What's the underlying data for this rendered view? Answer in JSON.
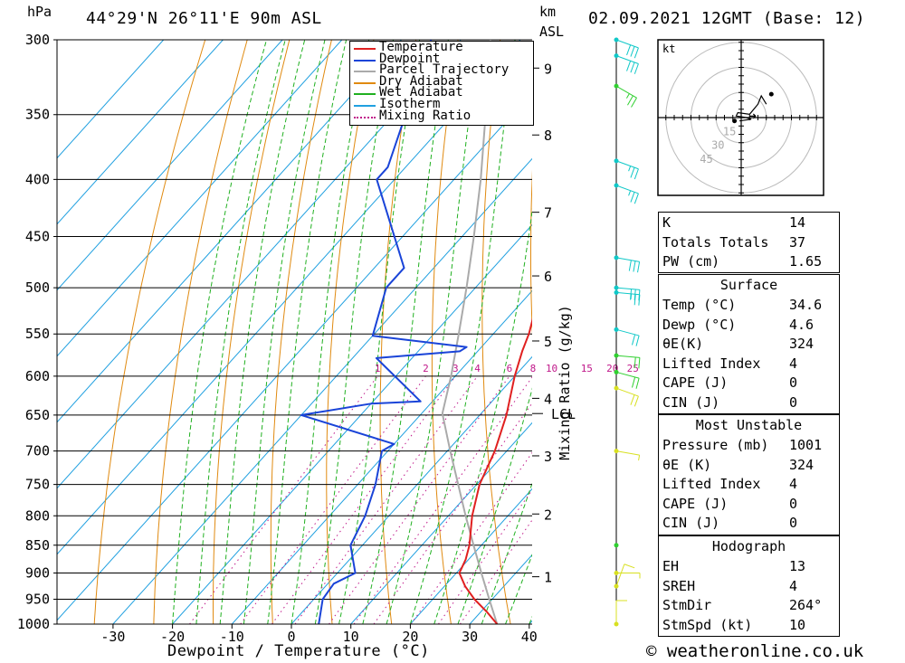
{
  "header": {
    "hpa_label": "hPa",
    "location": "44°29'N 26°11'E 90m ASL",
    "km_label": "km",
    "asl_label": "ASL",
    "datetime": "02.09.2021 12GMT (Base: 12)"
  },
  "footer": {
    "copyright": "© weatheronline.co.uk"
  },
  "colors": {
    "temperature": "#e02020",
    "dewpoint": "#1a44d8",
    "parcel": "#aaaaaa",
    "dry_adiabat": "#e08a10",
    "wet_adiabat": "#20b020",
    "isotherm": "#20a0e0",
    "mixing_ratio": "#c0188a",
    "wind_upper": "#10c8c8",
    "wind_mid": "#30d030",
    "wind_low": "#d8e020"
  },
  "chart_data": {
    "type": "skew-t",
    "title": "44°29'N 26°11'E 90m ASL",
    "xlabel": "Dewpoint / Temperature (°C)",
    "ylabel": "hPa",
    "y2label": "Mixing Ratio (g/kg)",
    "x_ticks": [
      -30,
      -20,
      -10,
      0,
      10,
      20,
      30,
      40
    ],
    "pressure_levels": [
      300,
      350,
      400,
      450,
      500,
      550,
      600,
      650,
      700,
      750,
      800,
      850,
      900,
      950,
      1000
    ],
    "km_ticks": [
      {
        "label": "1",
        "p": 907
      },
      {
        "label": "2",
        "p": 797
      },
      {
        "label": "3",
        "p": 707
      },
      {
        "label": "4",
        "p": 628
      },
      {
        "label": "5",
        "p": 558
      },
      {
        "label": "6",
        "p": 488
      },
      {
        "label": "7",
        "p": 428
      },
      {
        "label": "8",
        "p": 365
      },
      {
        "label": "9",
        "p": 318
      }
    ],
    "lcl": {
      "label": "LCL",
      "p": 648
    },
    "mixing_ratio_labels": [
      "1",
      "2",
      "3",
      "4",
      "6",
      "8",
      "10",
      "15",
      "20",
      "25"
    ],
    "legend": [
      {
        "label": "Temperature",
        "key": "temperature",
        "dotted": false
      },
      {
        "label": "Dewpoint",
        "key": "dewpoint",
        "dotted": false
      },
      {
        "label": "Parcel Trajectory",
        "key": "parcel",
        "dotted": false
      },
      {
        "label": "Dry Adiabat",
        "key": "dry_adiabat",
        "dotted": false
      },
      {
        "label": "Wet Adiabat",
        "key": "wet_adiabat",
        "dotted": false
      },
      {
        "label": "Isotherm",
        "key": "isotherm",
        "dotted": false
      },
      {
        "label": "Mixing Ratio",
        "key": "mixing_ratio",
        "dotted": true
      }
    ],
    "temperature_profile": [
      {
        "p": 1000,
        "t": 34.6
      },
      {
        "p": 975,
        "t": 31
      },
      {
        "p": 950,
        "t": 27
      },
      {
        "p": 925,
        "t": 23.5
      },
      {
        "p": 900,
        "t": 20.5
      },
      {
        "p": 875,
        "t": 19.5
      },
      {
        "p": 850,
        "t": 18
      },
      {
        "p": 800,
        "t": 14
      },
      {
        "p": 750,
        "t": 10.5
      },
      {
        "p": 700,
        "t": 8
      },
      {
        "p": 650,
        "t": 4.5
      },
      {
        "p": 600,
        "t": 0
      },
      {
        "p": 570,
        "t": -2.5
      },
      {
        "p": 550,
        "t": -4
      },
      {
        "p": 500,
        "t": -9
      },
      {
        "p": 450,
        "t": -15.5
      },
      {
        "p": 400,
        "t": -22.5
      },
      {
        "p": 350,
        "t": -30.5
      },
      {
        "p": 320,
        "t": -35.5
      },
      {
        "p": 300,
        "t": -39
      }
    ],
    "dewpoint_profile": [
      {
        "p": 1000,
        "td": 4.6
      },
      {
        "p": 950,
        "td": 1.5
      },
      {
        "p": 920,
        "td": 1
      },
      {
        "p": 900,
        "td": 3
      },
      {
        "p": 850,
        "td": -2
      },
      {
        "p": 800,
        "td": -4
      },
      {
        "p": 750,
        "td": -7
      },
      {
        "p": 700,
        "td": -11
      },
      {
        "p": 690,
        "td": -10
      },
      {
        "p": 650,
        "td": -30
      },
      {
        "p": 635,
        "td": -20
      },
      {
        "p": 632,
        "td": -12
      },
      {
        "p": 578,
        "td": -26
      },
      {
        "p": 570,
        "td": -13
      },
      {
        "p": 565,
        "td": -12.5
      },
      {
        "p": 552,
        "td": -30
      },
      {
        "p": 500,
        "td": -35
      },
      {
        "p": 480,
        "td": -35
      },
      {
        "p": 400,
        "td": -53
      },
      {
        "p": 390,
        "td": -53
      },
      {
        "p": 300,
        "td": -65
      }
    ],
    "parcel_profile": [
      {
        "p": 1000,
        "t": 34.6
      },
      {
        "p": 950,
        "t": 29.5
      },
      {
        "p": 900,
        "t": 24.2
      },
      {
        "p": 850,
        "t": 18.7
      },
      {
        "p": 800,
        "t": 12.9
      },
      {
        "p": 750,
        "t": 6.9
      },
      {
        "p": 700,
        "t": 0.5
      },
      {
        "p": 648,
        "t": -6.5
      },
      {
        "p": 600,
        "t": -10.7
      },
      {
        "p": 550,
        "t": -15.8
      },
      {
        "p": 500,
        "t": -21.5
      },
      {
        "p": 450,
        "t": -28
      },
      {
        "p": 400,
        "t": -35.5
      },
      {
        "p": 350,
        "t": -44.5
      },
      {
        "p": 300,
        "t": -55
      }
    ],
    "wind_barbs": [
      {
        "p": 300,
        "dir": 290,
        "kt": 30,
        "color": "wind_upper"
      },
      {
        "p": 310,
        "dir": 290,
        "kt": 30,
        "color": "wind_upper"
      },
      {
        "p": 330,
        "dir": 300,
        "kt": 25,
        "color": "wind_mid"
      },
      {
        "p": 385,
        "dir": 290,
        "kt": 25,
        "color": "wind_upper"
      },
      {
        "p": 405,
        "dir": 290,
        "kt": 25,
        "color": "wind_upper"
      },
      {
        "p": 470,
        "dir": 280,
        "kt": 30,
        "color": "wind_upper"
      },
      {
        "p": 500,
        "dir": 275,
        "kt": 30,
        "color": "wind_upper"
      },
      {
        "p": 505,
        "dir": 275,
        "kt": 25,
        "color": "wind_upper"
      },
      {
        "p": 545,
        "dir": 285,
        "kt": 20,
        "color": "wind_upper"
      },
      {
        "p": 575,
        "dir": 275,
        "kt": 20,
        "color": "wind_mid"
      },
      {
        "p": 595,
        "dir": 285,
        "kt": 20,
        "color": "wind_mid"
      },
      {
        "p": 615,
        "dir": 290,
        "kt": 20,
        "color": "wind_low"
      },
      {
        "p": 700,
        "dir": 280,
        "kt": 5,
        "color": "wind_low"
      },
      {
        "p": 850,
        "dir": 270,
        "kt": 0,
        "color": "wind_mid"
      },
      {
        "p": 900,
        "dir": 270,
        "kt": 5,
        "color": "wind_low"
      },
      {
        "p": 925,
        "dir": 200,
        "kt": 10,
        "color": "wind_low"
      },
      {
        "p": 1000,
        "dir": 180,
        "kt": 10,
        "color": "wind_low"
      }
    ],
    "hodograph": {
      "units": "kt",
      "rings": [
        15,
        30,
        45
      ],
      "points": [
        [
          -1,
          -2
        ],
        [
          6,
          -1
        ],
        [
          3,
          0
        ],
        [
          -3,
          1
        ],
        [
          -2,
          3
        ],
        [
          5,
          2
        ],
        [
          10,
          8
        ],
        [
          12,
          13
        ],
        [
          15,
          8
        ]
      ],
      "storm_motion": [
        10,
        1
      ]
    }
  },
  "indices": {
    "rows": [
      {
        "label": "K",
        "value": "14"
      },
      {
        "label": "Totals Totals",
        "value": "37"
      },
      {
        "label": "PW (cm)",
        "value": "1.65"
      }
    ]
  },
  "surface": {
    "heading": "Surface",
    "rows": [
      {
        "label": "Temp (°C)",
        "value": "34.6"
      },
      {
        "label": "Dewp (°C)",
        "value": "4.6"
      },
      {
        "label": "θE(K)",
        "value": "324"
      },
      {
        "label": "Lifted Index",
        "value": "4"
      },
      {
        "label": "CAPE (J)",
        "value": "0"
      },
      {
        "label": "CIN (J)",
        "value": "0"
      }
    ]
  },
  "most_unstable": {
    "heading": "Most Unstable",
    "rows": [
      {
        "label": "Pressure (mb)",
        "value": "1001"
      },
      {
        "label": "θE (K)",
        "value": "324"
      },
      {
        "label": "Lifted Index",
        "value": "4"
      },
      {
        "label": "CAPE (J)",
        "value": "0"
      },
      {
        "label": "CIN (J)",
        "value": "0"
      }
    ]
  },
  "hodograph_table": {
    "heading": "Hodograph",
    "rows": [
      {
        "label": "EH",
        "value": "13"
      },
      {
        "label": "SREH",
        "value": "4"
      },
      {
        "label": "StmDir",
        "value": "264°"
      },
      {
        "label": "StmSpd (kt)",
        "value": "10"
      }
    ]
  }
}
